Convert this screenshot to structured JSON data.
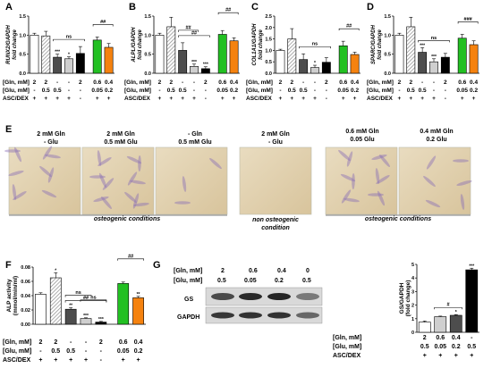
{
  "panels": {
    "A": {
      "letter": "A",
      "ylabel": "RUNX2/GAPDH\nfold change"
    },
    "B": {
      "letter": "B",
      "ylabel": "ALPL/GAPDH\nfold change"
    },
    "C": {
      "letter": "C",
      "ylabel": "COL1A1/GAPDH\nfold change"
    },
    "D": {
      "letter": "D",
      "ylabel": "SPARC/GAPDH\nfold change"
    },
    "E": {
      "letter": "E"
    },
    "F": {
      "letter": "F"
    },
    "G": {
      "letter": "G"
    }
  },
  "row_labels": {
    "gln": "[Gln, mM]",
    "glu": "[Glu, mM]",
    "asc": "ASC/DEX"
  },
  "condition_rows": {
    "gln": [
      "2",
      "2",
      "-",
      "-",
      "2",
      "0.6",
      "0.4"
    ],
    "glu": [
      "-",
      "0.5",
      "0.5",
      "-",
      "-",
      "0.05",
      "0.2"
    ],
    "asc": [
      "+",
      "+",
      "+",
      "+",
      "-",
      "+",
      "+"
    ]
  },
  "micrographs": {
    "labels": [
      "2 mM Gln\n- Glu",
      "2 mM Gln\n0.5 mM Glu",
      "- Gln\n0.5 mM Glu",
      "2 mM Gln\n- Glu",
      "0.6 mM Gln\n0.05 Glu",
      "0.4 mM Gln\n0.2 Glu"
    ],
    "captions": [
      "osteogenic conditions",
      "non osteogenic\ncondition",
      "osteogenic conditions"
    ]
  },
  "western": {
    "gln_values": [
      "2",
      "0.6",
      "0.4",
      "0"
    ],
    "glu_values": [
      "0.5",
      "0.05",
      "0.2",
      "0.5"
    ],
    "band_labels": [
      "GS",
      "GAPDH"
    ],
    "band_intensity": {
      "GS": [
        0.75,
        0.92,
        0.95,
        0.5
      ],
      "GAPDH": [
        0.85,
        0.88,
        0.88,
        0.6
      ]
    }
  },
  "colors": {
    "white": "#ffffff",
    "hatch": "#b8b8b8",
    "dark": "#4d4d4d",
    "light": "#cfcfcf",
    "black": "#000000",
    "green": "#22c022",
    "orange": "#f5820f"
  },
  "chart_data": [
    {
      "panel": "A",
      "type": "bar",
      "ylim": [
        0,
        1.5
      ],
      "yticks": [
        "0.0",
        "0.5",
        "1.0",
        "1.5"
      ],
      "ylabel": "RUNX2/GAPDH fold change",
      "values": [
        1.0,
        0.98,
        0.42,
        0.38,
        0.52,
        0.87,
        0.68
      ],
      "errors": [
        0.05,
        0.12,
        0.08,
        0.05,
        0.18,
        0.08,
        0.1
      ],
      "sig": [
        "",
        "",
        "***",
        "*",
        "",
        "",
        ""
      ],
      "brackets": [
        {
          "from": 2,
          "to": 4,
          "text": "ns"
        },
        {
          "from": 5,
          "to": 6,
          "text": "##"
        }
      ]
    },
    {
      "panel": "B",
      "type": "bar",
      "ylim": [
        0,
        1.5
      ],
      "yticks": [
        "0.0",
        "0.5",
        "1.0",
        "1.5"
      ],
      "ylabel": "ALPL/GAPDH fold change",
      "values": [
        1.0,
        1.22,
        0.6,
        0.18,
        0.12,
        1.02,
        0.85
      ],
      "errors": [
        0.05,
        0.25,
        0.2,
        0.06,
        0.05,
        0.1,
        0.08
      ],
      "sig": [
        "",
        "",
        "",
        "***",
        "***",
        "",
        ""
      ],
      "brackets": [
        {
          "from": 2,
          "to": 4,
          "text": "##"
        },
        {
          "from": 2,
          "to": 3,
          "text": "##"
        },
        {
          "from": 5,
          "to": 6,
          "text": "##"
        }
      ]
    },
    {
      "panel": "C",
      "type": "bar",
      "ylim": [
        0,
        2.5
      ],
      "yticks": [
        "0.0",
        "0.5",
        "1.0",
        "1.5",
        "2.0",
        "2.5"
      ],
      "ylabel": "COL1A1/GAPDH fold change",
      "values": [
        1.0,
        1.5,
        0.6,
        0.25,
        0.48,
        1.2,
        0.82
      ],
      "errors": [
        0.05,
        0.45,
        0.25,
        0.1,
        0.2,
        0.2,
        0.1
      ],
      "sig": [
        "",
        "",
        "",
        "*",
        "",
        "",
        ""
      ],
      "brackets": [
        {
          "from": 2,
          "to": 4,
          "text": "ns"
        },
        {
          "from": 5,
          "to": 6,
          "text": "##"
        }
      ]
    },
    {
      "panel": "D",
      "type": "bar",
      "ylim": [
        0,
        1.5
      ],
      "yticks": [
        "0.0",
        "0.5",
        "1.0",
        "1.5"
      ],
      "ylabel": "SPARC/GAPDH fold change",
      "values": [
        1.0,
        1.22,
        0.55,
        0.3,
        0.42,
        0.92,
        0.75
      ],
      "errors": [
        0.05,
        0.25,
        0.12,
        0.08,
        0.1,
        0.1,
        0.1
      ],
      "sig": [
        "",
        "",
        "***",
        "***",
        "",
        "",
        ""
      ],
      "brackets": [
        {
          "from": 2,
          "to": 4,
          "text": "ns"
        },
        {
          "from": 5,
          "to": 6,
          "text": "###"
        }
      ]
    },
    {
      "panel": "F",
      "type": "bar",
      "ylim": [
        0,
        0.08
      ],
      "yticks": [
        "0.00",
        "0.02",
        "0.04",
        "0.06",
        "0.08"
      ],
      "ylabel": "ALP activity\n(mmol/min/ml)",
      "values": [
        0.042,
        0.065,
        0.021,
        0.008,
        0.003,
        0.057,
        0.037
      ],
      "errors": [
        0.002,
        0.007,
        0.002,
        0.001,
        0.001,
        0.002,
        0.002
      ],
      "sig": [
        "",
        "*",
        "**",
        "***",
        "***",
        "",
        "**"
      ],
      "brackets": [
        {
          "from": 2,
          "to": 4,
          "text": "##"
        },
        {
          "from": 2,
          "to": 3,
          "text": "ns"
        },
        {
          "from": 3,
          "to": 4,
          "text": "ns"
        },
        {
          "from": 5,
          "to": 6,
          "text": "##"
        }
      ]
    },
    {
      "panel": "G",
      "type": "bar",
      "ylim": [
        0,
        5
      ],
      "yticks": [
        "0",
        "1",
        "2",
        "3",
        "4",
        "5"
      ],
      "ylabel": "GS/GAPDH\n(fold change)",
      "values": [
        0.75,
        1.15,
        1.25,
        4.6
      ],
      "errors": [
        0.08,
        0.04,
        0.05,
        0.12
      ],
      "sig": [
        "",
        "",
        "*",
        "***"
      ],
      "brackets": [
        {
          "from": 1,
          "to": 2,
          "text": "#"
        }
      ],
      "row_values": {
        "gln": [
          "2",
          "0.6",
          "0.4",
          "-"
        ],
        "glu": [
          "0.5",
          "0.05",
          "0.2",
          "0.5"
        ],
        "asc": [
          "+",
          "+",
          "+",
          "+"
        ]
      }
    }
  ]
}
